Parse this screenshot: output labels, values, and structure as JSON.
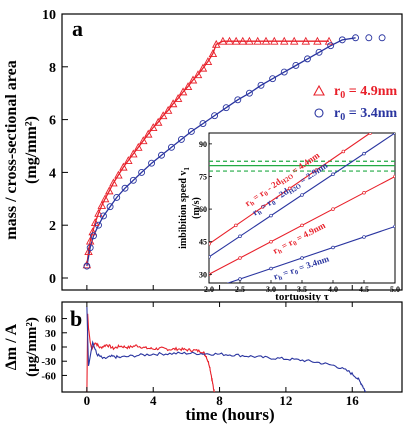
{
  "chart_data": [
    {
      "panel": "a",
      "type": "scatter",
      "ylabel_lines": [
        "mass / cross-sectional area",
        "(mg/mm²)"
      ],
      "ylim": [
        0,
        10
      ],
      "xlim": [
        -1.5,
        19
      ],
      "y_ticks": [
        "0",
        "2",
        "4",
        "6",
        "8",
        "10"
      ],
      "series": [
        {
          "name": "r₀ = 4.9nm",
          "marker": "triangle",
          "color": "#e8202a",
          "x": [
            0.0,
            0.1,
            0.2,
            0.35,
            0.5,
            0.7,
            0.9,
            1.1,
            1.35,
            1.6,
            1.9,
            2.2,
            2.5,
            2.8,
            3.1,
            3.4,
            3.7,
            4.0,
            4.3,
            4.6,
            4.9,
            5.2,
            5.5,
            5.8,
            6.1,
            6.4,
            6.7,
            7.0,
            7.3,
            7.6,
            7.8,
            8.2,
            8.6,
            9.0,
            9.4,
            9.8,
            10.3,
            10.8,
            11.3,
            11.9,
            12.5,
            13.2,
            13.9,
            14.6
          ],
          "y": [
            0.5,
            1.0,
            1.4,
            1.75,
            2.1,
            2.45,
            2.75,
            3.0,
            3.3,
            3.6,
            3.9,
            4.2,
            4.45,
            4.7,
            4.95,
            5.2,
            5.45,
            5.7,
            5.9,
            6.15,
            6.35,
            6.6,
            6.8,
            7.05,
            7.25,
            7.5,
            7.7,
            7.95,
            8.2,
            8.5,
            8.85,
            8.97,
            8.97,
            8.97,
            8.97,
            8.97,
            8.97,
            8.97,
            8.97,
            8.97,
            8.97,
            8.97,
            8.97,
            8.97
          ]
        },
        {
          "name": "r₀ = 3.4nm",
          "marker": "circle",
          "color": "#2a35a0",
          "x": [
            0.0,
            0.2,
            0.4,
            0.7,
            1.0,
            1.4,
            1.8,
            2.3,
            2.8,
            3.3,
            3.9,
            4.5,
            5.1,
            5.7,
            6.3,
            7.0,
            7.7,
            8.4,
            9.1,
            9.8,
            10.5,
            11.2,
            11.9,
            12.6,
            13.3,
            14.0,
            14.7,
            15.4,
            16.2,
            17.0,
            17.8
          ],
          "y": [
            0.45,
            1.15,
            1.6,
            2.0,
            2.35,
            2.7,
            3.05,
            3.4,
            3.7,
            4.0,
            4.35,
            4.65,
            4.95,
            5.25,
            5.55,
            5.85,
            6.15,
            6.45,
            6.75,
            7.0,
            7.3,
            7.55,
            7.8,
            8.05,
            8.3,
            8.55,
            8.8,
            9.02,
            9.1,
            9.1,
            9.1
          ]
        }
      ]
    },
    {
      "panel": "inset",
      "type": "line",
      "xlabel": "tortuosity τ",
      "ylabel_lines": [
        "imbibition speed v",
        "(m/s)"
      ],
      "ylabel_sub": "1",
      "xlim": [
        2.0,
        5.0
      ],
      "ylim": [
        26,
        95
      ],
      "x_ticks": [
        "2.0",
        "2.5",
        "3.0",
        "3.5",
        "4.0",
        "4.5",
        "5.0"
      ],
      "y_ticks": [
        "30",
        "45",
        "60",
        "75",
        "90"
      ],
      "series": [
        {
          "label": "r",
          "label_sub": "h",
          "label_rest": " = r",
          "label_sub2": "0",
          "label_tail": " - 2d",
          "label_sub3": "H2O",
          "label_end": " = 4.4nm",
          "color": "#e8202a",
          "x": [
            2.0,
            4.6
          ],
          "y": [
            44,
            95
          ]
        },
        {
          "label": "r",
          "label_sub": "h",
          "label_rest": " = r",
          "label_sub2": "0",
          "label_tail": " - 2d",
          "label_sub3": "H2O",
          "label_end": " = 2.9nm",
          "color": "#2a35a0",
          "x": [
            2.0,
            5.0
          ],
          "y": [
            38,
            95
          ]
        },
        {
          "label": "r",
          "label_sub": "h",
          "label_rest": " = r",
          "label_sub2": "0",
          "label_tail": "",
          "label_sub3": "",
          "label_end": " = 4.9nm",
          "color": "#e8202a",
          "x": [
            2.0,
            5.0
          ],
          "y": [
            30,
            75
          ]
        },
        {
          "label": "r",
          "label_sub": "h",
          "label_rest": " = r",
          "label_sub2": "0",
          "label_tail": "",
          "label_sub3": "",
          "label_end": " = 3.4nm",
          "color": "#2a35a0",
          "x": [
            2.0,
            5.0
          ],
          "y": [
            23,
            52
          ]
        }
      ],
      "hlines": [
        {
          "y": 80,
          "style": "solid",
          "color": "#22aa44"
        },
        {
          "y": 82,
          "style": "dashed",
          "color": "#22aa44"
        },
        {
          "y": 77.5,
          "style": "dashed",
          "color": "#22aa44"
        }
      ]
    },
    {
      "panel": "b",
      "type": "line",
      "xlabel": "time (hours)",
      "ylabel_lines": [
        "Δm / A",
        "(μg/mm²)"
      ],
      "xlim": [
        -1.5,
        19
      ],
      "ylim": [
        -95,
        95
      ],
      "x_ticks": [
        "0",
        "4",
        "8",
        "12",
        "16"
      ],
      "y_ticks": [
        "60",
        "30",
        "0",
        "-30",
        "-60"
      ],
      "series": [
        {
          "name": "r₀ = 4.9nm",
          "color": "#e8202a",
          "x": [
            0.0,
            0.05,
            0.1,
            0.2,
            0.3,
            0.5,
            0.8,
            1.2,
            1.6,
            2.0,
            2.5,
            3.0,
            3.5,
            4.0,
            4.5,
            5.0,
            5.5,
            6.0,
            6.5,
            7.0,
            7.2,
            7.4,
            7.55,
            7.65,
            7.7
          ],
          "y": [
            -95,
            70,
            40,
            10,
            -5,
            10,
            -2,
            5,
            -3,
            2,
            -1,
            3,
            -2,
            -4,
            -3,
            -5,
            -4,
            -6,
            -7,
            -10,
            -20,
            -40,
            -70,
            -90,
            -95
          ]
        },
        {
          "name": "r₀ = 3.4nm",
          "color": "#2a35a0",
          "x": [
            0.0,
            0.05,
            0.1,
            0.2,
            0.35,
            0.6,
            1.0,
            1.5,
            2.0,
            3.0,
            4.0,
            5.0,
            6.0,
            7.0,
            8.0,
            9.0,
            10.0,
            11.0,
            12.0,
            13.0,
            14.0,
            15.0,
            15.8,
            16.3,
            16.6,
            16.8
          ],
          "y": [
            85,
            20,
            -40,
            -20,
            10,
            -15,
            -25,
            -20,
            -22,
            -18,
            -15,
            -14,
            -13,
            -14,
            -15,
            -17,
            -20,
            -23,
            -25,
            -28,
            -33,
            -40,
            -52,
            -65,
            -80,
            -95
          ]
        }
      ]
    }
  ],
  "labels": {
    "panel_a": "a",
    "panel_b": "b",
    "legend_a1_prefix": "r",
    "legend_a1_sub": "0",
    "legend_a1_value": " = 4.9nm",
    "legend_a2_prefix": "r",
    "legend_a2_sub": "0",
    "legend_a2_value": " = 3.4nm"
  }
}
